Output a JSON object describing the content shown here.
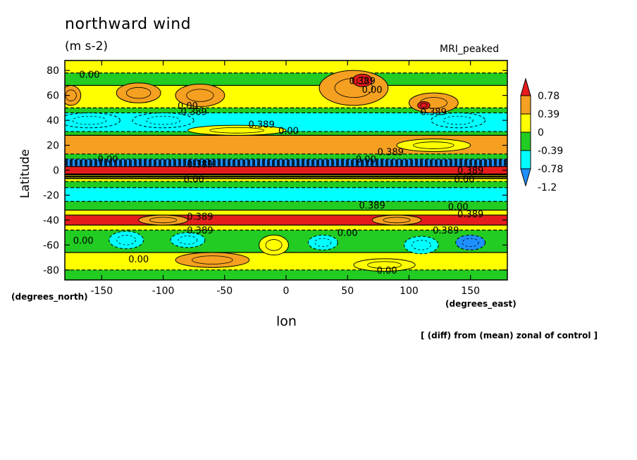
{
  "chart_data": {
    "type": "heatmap",
    "title": "northward wind",
    "units": "(m s-2)",
    "model": "MRI_peaked",
    "xlabel": "lon",
    "ylabel": "Latitude",
    "x_units": "(degrees_east)",
    "y_units": "(degrees_north)",
    "note": "[ (diff) from (mean) zonal of control ]",
    "xlim": [
      -180,
      180
    ],
    "ylim": [
      -88,
      88
    ],
    "x_ticks": [
      -150,
      -100,
      -50,
      0,
      50,
      100,
      150
    ],
    "x_tick_labels": [
      "-150",
      "-100",
      "-50",
      "0",
      "50",
      "100",
      "150"
    ],
    "y_ticks": [
      -80,
      -60,
      -40,
      -20,
      0,
      20,
      40,
      60,
      80
    ],
    "y_tick_labels": [
      "-80",
      "-60",
      "-40",
      "-20",
      "0",
      "20",
      "40",
      "60",
      "80"
    ],
    "colorbar": {
      "labels": [
        "0.78",
        "0.39",
        "0",
        "-0.39",
        "-0.78",
        "-1.2"
      ],
      "levels": [
        0.78,
        0.39,
        0,
        -0.39,
        -0.78,
        -1.2
      ],
      "colors": [
        "#e61c1c",
        "#f5a020",
        "#ffff00",
        "#22cc22",
        "#00ffff",
        "#1e90ff"
      ]
    },
    "bands": [
      {
        "lat0": 78,
        "lat1": 88,
        "level": 0
      },
      {
        "lat0": 68,
        "lat1": 78,
        "level": -0.39
      },
      {
        "lat0": 50,
        "lat1": 68,
        "level": 0
      },
      {
        "lat0": 46,
        "lat1": 50,
        "level": -0.39
      },
      {
        "lat0": 31,
        "lat1": 46,
        "level": -0.78
      },
      {
        "lat0": 28,
        "lat1": 31,
        "level": -0.39
      },
      {
        "lat0": 13,
        "lat1": 28,
        "level": 0.39
      },
      {
        "lat0": 9,
        "lat1": 13,
        "level": -0.39
      },
      {
        "lat0": 3,
        "lat1": 9,
        "level": -1.2
      },
      {
        "lat0": -3,
        "lat1": 3,
        "level": 0.78
      },
      {
        "lat0": -9,
        "lat1": -3,
        "level": 0
      },
      {
        "lat0": -14,
        "lat1": -9,
        "level": -0.39
      },
      {
        "lat0": -25,
        "lat1": -14,
        "level": -0.78
      },
      {
        "lat0": -32,
        "lat1": -25,
        "level": -0.39
      },
      {
        "lat0": -36,
        "lat1": -32,
        "level": 0
      },
      {
        "lat0": -44,
        "lat1": -36,
        "level": 0.78
      },
      {
        "lat0": -48,
        "lat1": -44,
        "level": 0
      },
      {
        "lat0": -66,
        "lat1": -48,
        "level": -0.39
      },
      {
        "lat0": -80,
        "lat1": -66,
        "level": 0
      },
      {
        "lat0": -88,
        "lat1": -80,
        "level": -0.39
      }
    ],
    "blobs": [
      {
        "lon": -120,
        "lat": 62,
        "rlon": 18,
        "rlat": 8,
        "level": 0.39
      },
      {
        "lon": -70,
        "lat": 60,
        "rlon": 20,
        "rlat": 9,
        "level": 0.39
      },
      {
        "lon": 55,
        "lat": 66,
        "rlon": 28,
        "rlat": 14,
        "level": 0.39
      },
      {
        "lon": 62,
        "lat": 72,
        "rlon": 8,
        "rlat": 5,
        "level": 0.78
      },
      {
        "lon": 120,
        "lat": 54,
        "rlon": 20,
        "rlat": 8,
        "level": 0.39
      },
      {
        "lon": 112,
        "lat": 52,
        "rlon": 5,
        "rlat": 3,
        "level": 0.78
      },
      {
        "lon": -175,
        "lat": 60,
        "rlon": 8,
        "rlat": 8,
        "level": 0.39
      },
      {
        "lon": -160,
        "lat": 40,
        "rlon": 25,
        "rlat": 6,
        "level": -0.78
      },
      {
        "lon": -100,
        "lat": 40,
        "rlon": 25,
        "rlat": 6,
        "level": -0.78
      },
      {
        "lon": 140,
        "lat": 40,
        "rlon": 22,
        "rlat": 6,
        "level": -0.78
      },
      {
        "lon": -40,
        "lat": 32,
        "rlon": 40,
        "rlat": 4,
        "level": 0
      },
      {
        "lon": 120,
        "lat": 20,
        "rlon": 30,
        "rlat": 5,
        "level": 0
      },
      {
        "lon": -100,
        "lat": -40,
        "rlon": 20,
        "rlat": 4,
        "level": 0.39
      },
      {
        "lon": 90,
        "lat": -40,
        "rlon": 20,
        "rlat": 4,
        "level": 0.39
      },
      {
        "lon": -130,
        "lat": -56,
        "rlon": 14,
        "rlat": 7,
        "level": -0.78
      },
      {
        "lon": -80,
        "lat": -56,
        "rlon": 14,
        "rlat": 6,
        "level": -0.78
      },
      {
        "lon": 30,
        "lat": -58,
        "rlon": 12,
        "rlat": 6,
        "level": -0.78
      },
      {
        "lon": 110,
        "lat": -60,
        "rlon": 14,
        "rlat": 7,
        "level": -0.78
      },
      {
        "lon": 150,
        "lat": -58,
        "rlon": 12,
        "rlat": 6,
        "level": -1.2
      },
      {
        "lon": -60,
        "lat": -72,
        "rlon": 30,
        "rlat": 6,
        "level": 0.39
      },
      {
        "lon": -10,
        "lat": -60,
        "rlon": 12,
        "rlat": 8,
        "level": 0
      },
      {
        "lon": 80,
        "lat": -76,
        "rlon": 25,
        "rlat": 5,
        "level": 0
      }
    ],
    "contour_labels": [
      {
        "text": "0.00",
        "lon": -160,
        "lat": 77
      },
      {
        "text": "0.389",
        "lon": 62,
        "lat": 72
      },
      {
        "text": "0.00",
        "lon": 70,
        "lat": 65
      },
      {
        "text": "0.00",
        "lon": -80,
        "lat": 52
      },
      {
        "text": "0.389",
        "lon": -75,
        "lat": 47
      },
      {
        "text": "0.389",
        "lon": 120,
        "lat": 47
      },
      {
        "text": "0.389",
        "lon": -20,
        "lat": 37
      },
      {
        "text": "0.00",
        "lon": 2,
        "lat": 32
      },
      {
        "text": "0.389",
        "lon": 85,
        "lat": 15
      },
      {
        "text": "0.00",
        "lon": -145,
        "lat": 9
      },
      {
        "text": "0.00",
        "lon": 65,
        "lat": 9
      },
      {
        "text": "0.389",
        "lon": -70,
        "lat": 5
      },
      {
        "text": "0.389",
        "lon": 150,
        "lat": 0
      },
      {
        "text": "0.00",
        "lon": -75,
        "lat": -7
      },
      {
        "text": "0.00",
        "lon": 145,
        "lat": -7
      },
      {
        "text": "0.389",
        "lon": 70,
        "lat": -28
      },
      {
        "text": "0.00",
        "lon": 140,
        "lat": -29
      },
      {
        "text": "0.389",
        "lon": 150,
        "lat": -35
      },
      {
        "text": "0.389",
        "lon": -70,
        "lat": -37
      },
      {
        "text": "0.389",
        "lon": -70,
        "lat": -48
      },
      {
        "text": "0.00",
        "lon": 50,
        "lat": -50
      },
      {
        "text": "0.389",
        "lon": 130,
        "lat": -48
      },
      {
        "text": "0.00",
        "lon": -165,
        "lat": -56
      },
      {
        "text": "0.00",
        "lon": -120,
        "lat": -71
      },
      {
        "text": "0.00",
        "lon": 82,
        "lat": -80
      }
    ]
  }
}
